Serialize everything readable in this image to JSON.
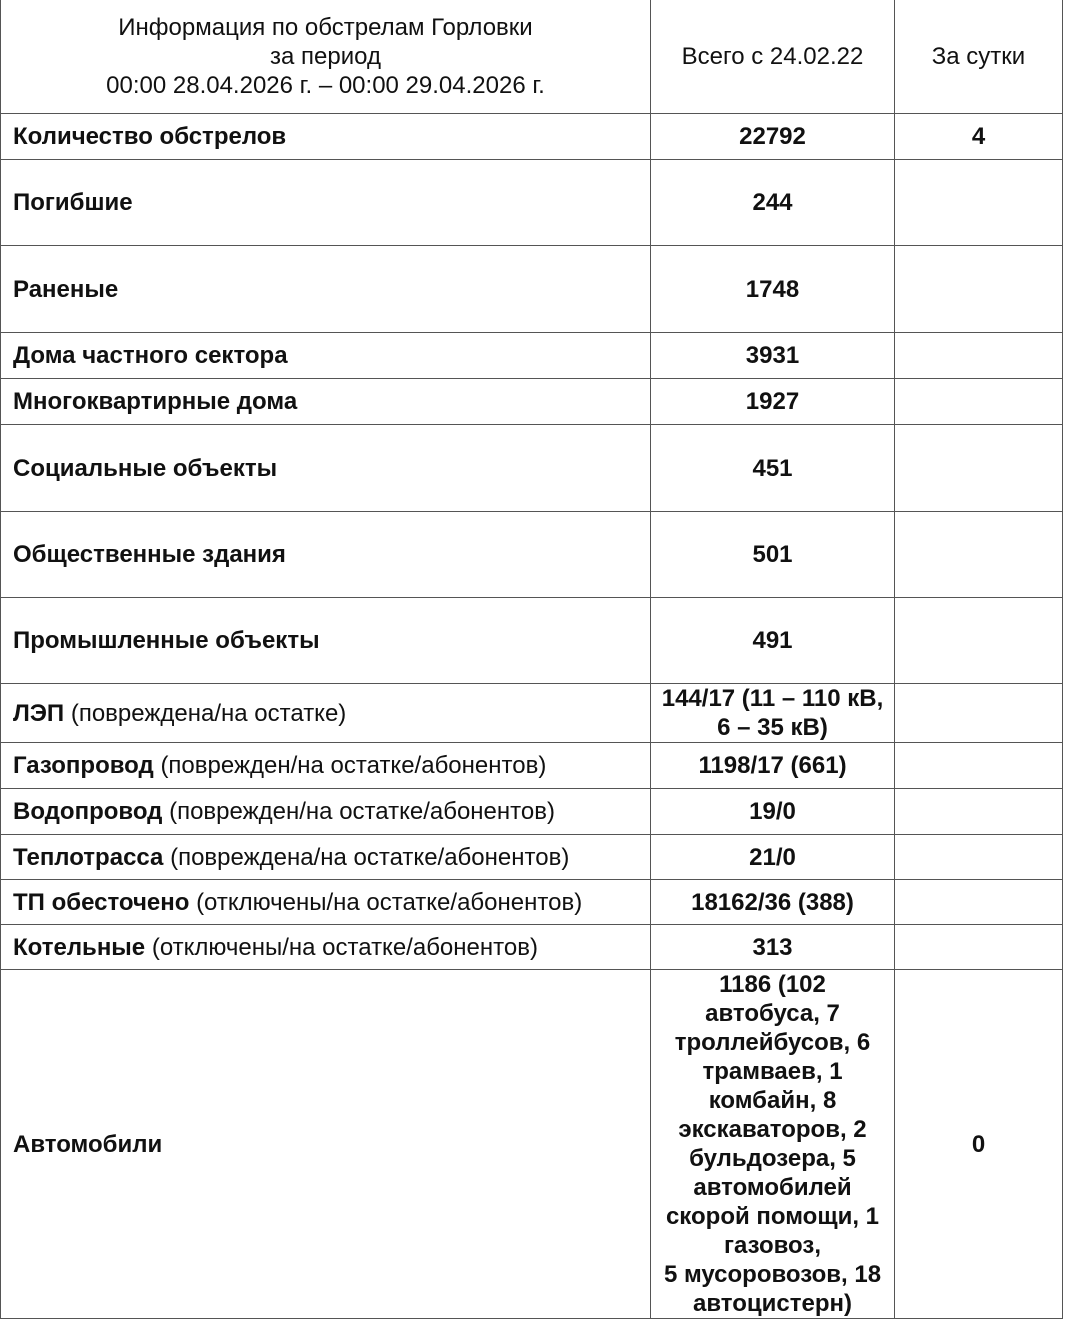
{
  "header": {
    "title_lines": [
      "Информация по обстрелам Горловки",
      "за период",
      "00:00 28.04.2026 г. – 00:00 29.04.2026 г."
    ],
    "col_total": "Всего с 24.02.22",
    "col_day": "За сутки"
  },
  "rows": [
    {
      "label": "Количество обстрелов",
      "note": "",
      "total": "22792",
      "day": "4"
    },
    {
      "label": "Погибшие",
      "note": "",
      "total": "244",
      "day": ""
    },
    {
      "label": "Раненые",
      "note": "",
      "total": "1748",
      "day": ""
    },
    {
      "label": "Дома частного сектора",
      "note": "",
      "total": "3931",
      "day": ""
    },
    {
      "label": "Многоквартирные дома",
      "note": "",
      "total": "1927",
      "day": ""
    },
    {
      "label": "Социальные объекты",
      "note": "",
      "total": "451",
      "day": ""
    },
    {
      "label": "Общественные здания",
      "note": "",
      "total": "501",
      "day": ""
    },
    {
      "label": "Промышленные объекты",
      "note": "",
      "total": "491",
      "day": ""
    },
    {
      "label": "ЛЭП",
      "note": "(повреждена/на остатке)",
      "total": "144/17 (11 – 110 кВ, 6 – 35 кВ)",
      "day": ""
    },
    {
      "label": "Газопровод",
      "note": "(поврежден/на остатке/абонентов)",
      "total": "1198/17 (661)",
      "day": ""
    },
    {
      "label": "Водопровод",
      "note": "(поврежден/на остатке/абонентов)",
      "total": "19/0",
      "day": ""
    },
    {
      "label": "Теплотрасса",
      "note": "(повреждена/на остатке/абонентов)",
      "total": "21/0",
      "day": ""
    },
    {
      "label": "ТП обесточено",
      "note": "(отключены/на остатке/абонентов)",
      "total": "18162/36 (388)",
      "day": ""
    },
    {
      "label": "Котельные",
      "note": "(отключены/на остатке/абонентов)",
      "total": "313",
      "day": ""
    },
    {
      "label": "Автомобили",
      "note": "",
      "total_lines": [
        "1186 (102",
        "автобуса, 7",
        "троллейбусов, 6",
        "трамваев, 1",
        "комбайн, 8",
        "экскаваторов, 2",
        "бульдозера, 5",
        "автомобилей",
        "скорой помощи, 1",
        "газовоз,",
        "5 мусоровозов, 18",
        "автоцистерн)"
      ],
      "day": "0"
    }
  ]
}
